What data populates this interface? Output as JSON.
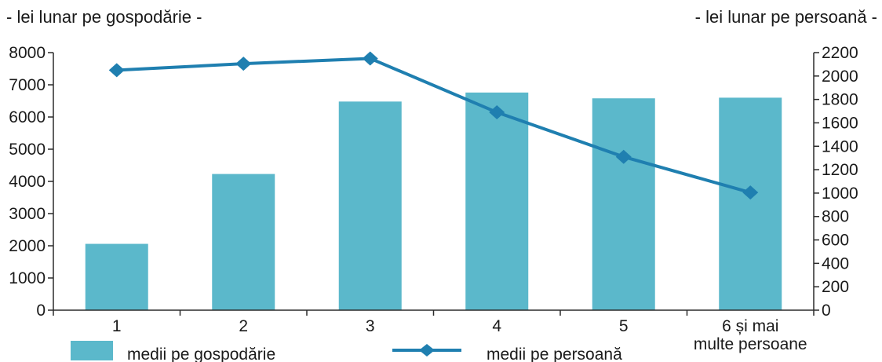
{
  "chart_data": {
    "type": "bar",
    "categories": [
      "1",
      "2",
      "3",
      "4",
      "5",
      [
        "6 și mai",
        "multe persoane"
      ]
    ],
    "left_axis": {
      "label": "- lei lunar pe gospodărie -",
      "ylim": [
        0,
        8000
      ],
      "ticks": [
        "0",
        "1000",
        "2000",
        "3000",
        "4000",
        "5000",
        "6000",
        "7000",
        "8000"
      ]
    },
    "right_axis": {
      "label": "- lei lunar pe persoană -",
      "ylim": [
        0,
        2200
      ],
      "ticks": [
        "0",
        "200",
        "400",
        "600",
        "800",
        "1000",
        "1200",
        "1400",
        "1600",
        "1800",
        "2000",
        "2200"
      ]
    },
    "series": [
      {
        "name": "medii pe gospodărie",
        "kind": "bar",
        "axis": "left",
        "color": "#5bb8cb",
        "values": [
          2060,
          4230,
          6480,
          6760,
          6580,
          6600
        ]
      },
      {
        "name": "medii pe persoană",
        "kind": "line",
        "axis": "right",
        "color": "#1f7fb0",
        "marker": "diamond",
        "values": [
          2050,
          2105,
          2150,
          1690,
          1310,
          1005
        ]
      }
    ],
    "grid": false,
    "legend_position": "bottom"
  }
}
